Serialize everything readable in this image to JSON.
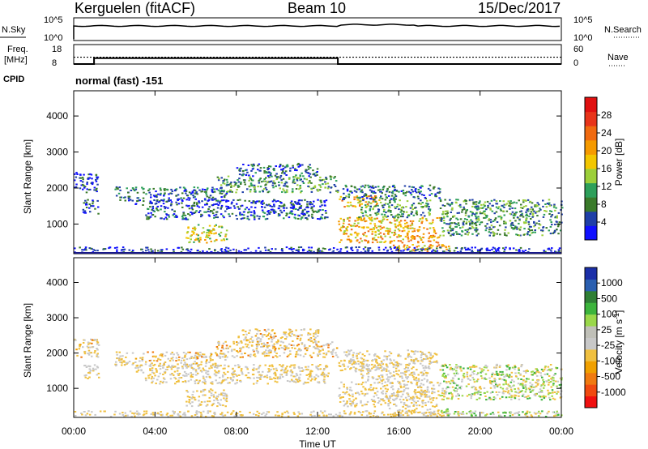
{
  "header": {
    "station": "Kerguelen (fitACF)",
    "beam": "Beam 10",
    "date": "15/Dec/2017"
  },
  "left_labels": {
    "nsky": "N.Sky",
    "freq_top": "Freq.",
    "freq_unit": "[MHz]",
    "cpid": "CPID"
  },
  "right_labels": {
    "nsearch": "N.Search",
    "nave": "Nave"
  },
  "cpid_text": "normal (fast) -151",
  "colors": {
    "power": [
      "#1010ff",
      "#1f3fa8",
      "#3a7a2a",
      "#2d9f5a",
      "#9ccf3a",
      "#f2c600",
      "#f59a00",
      "#f06a10",
      "#e8341a",
      "#e01010"
    ],
    "velocity": [
      "#f01010",
      "#f04a10",
      "#f07a10",
      "#f0a000",
      "#f0c040",
      "#c8c8c8",
      "#c0c0b8",
      "#9ad84a",
      "#3cb43c",
      "#2f7f35",
      "#2a5fb0",
      "#1b2fa8"
    ]
  },
  "chart_data": [
    {
      "type": "line",
      "name": "nsky_nsearch",
      "xlim": [
        0,
        24
      ],
      "y_left_ticks": [
        "10^5",
        "10^0"
      ],
      "y_right_ticks": [
        "10^5",
        "10^0"
      ]
    },
    {
      "type": "line",
      "name": "frequency_nave",
      "xlim": [
        0,
        24
      ],
      "y_left_ticks": [
        "18",
        "8"
      ],
      "y_right_ticks": [
        "60",
        "0"
      ],
      "series": [
        {
          "name": "Freq.",
          "x": [
            0,
            1,
            1,
            13,
            13,
            24
          ],
          "values": [
            8,
            8,
            12,
            12,
            8,
            8
          ]
        },
        {
          "name": "Nave",
          "x": [
            0,
            24
          ],
          "values": [
            23,
            23
          ]
        }
      ]
    },
    {
      "type": "heatmap",
      "name": "power",
      "xlabel": "",
      "ylabel": "Slant Range [km]",
      "colorbar_label": "Power [dB]",
      "colorbar_ticks": [
        "28",
        "24",
        "20",
        "16",
        "12",
        "8",
        "4"
      ],
      "y_ticks": [
        "4000",
        "3000",
        "2000",
        "1000"
      ],
      "xlim": [
        0,
        24
      ],
      "ylim": [
        200,
        4700
      ]
    },
    {
      "type": "heatmap",
      "name": "velocity",
      "xlabel": "Time UT",
      "ylabel": "Slant Range [km]",
      "colorbar_label": "Velocity [m s",
      "colorbar_label_sup": "-1",
      "colorbar_label_end": "]",
      "colorbar_ticks": [
        "1000",
        "500",
        "100",
        "25",
        "-25",
        "-100",
        "-500",
        "-1000"
      ],
      "y_ticks": [
        "4000",
        "3000",
        "2000",
        "1000"
      ],
      "x_ticks": [
        "00:00",
        "04:00",
        "08:00",
        "12:00",
        "16:00",
        "20:00",
        "00:00"
      ],
      "xlim": [
        0,
        24
      ],
      "ylim": [
        200,
        4700
      ]
    }
  ]
}
